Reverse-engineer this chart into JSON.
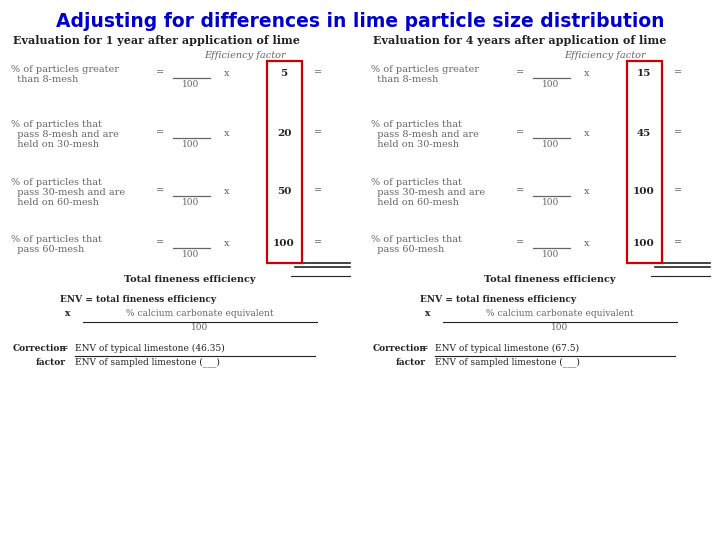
{
  "title": "Adjusting for differences in lime particle size distribution",
  "title_color": "#0000CC",
  "title_fontsize": 14,
  "bg_color": "#FFFFFF",
  "panel1_header_plain": "Evaluation for ",
  "panel1_header_bold": "1",
  "panel1_header_rest": " year after application of lime",
  "panel2_header_plain": "Evaluation for ",
  "panel2_header_bold": "4",
  "panel2_header_rest": " years after application of lime",
  "efficiency_label": "Efficiency factor",
  "rows": [
    {
      "label_line1": "% of particles greater",
      "label_line2": "  than 8-mesh",
      "label_line3": null,
      "val1": "5",
      "val2": "15",
      "three_lines": false
    },
    {
      "label_line1": "% of particles that",
      "label_line2": "  pass 8-mesh and are",
      "label_line3": "  held on 30-mesh",
      "val1": "20",
      "val2": "45",
      "three_lines": true
    },
    {
      "label_line1": "% of particles that",
      "label_line2": "  pass 30-mesh and are",
      "label_line3": "  held on 60-mesh",
      "val1": "50",
      "val2": "100",
      "three_lines": true
    },
    {
      "label_line1": "% of particles that",
      "label_line2": "  pass 60-mesh",
      "label_line3": null,
      "val1": "100",
      "val2": "100",
      "three_lines": false
    }
  ],
  "text_color": "#666666",
  "header_color": "#222222",
  "box_color": "#CC0000",
  "vals1": [
    "5",
    "20",
    "50",
    "100"
  ],
  "vals2": [
    "15",
    "45",
    "100",
    "100"
  ],
  "correction1": "Correction  =  ENV of typical limestone (46.35)",
  "correction2_top": "ENV of typical limestone (46.35)",
  "correction2_bot": "ENV of sampled limestone (___)",
  "correction1_r": "Correction  =  ENV of typical limestone (67.5)",
  "correction2_top_r": "ENV of typical limestone (67.5)",
  "correction2_bot_r": "ENV of sampled limestone (___)"
}
